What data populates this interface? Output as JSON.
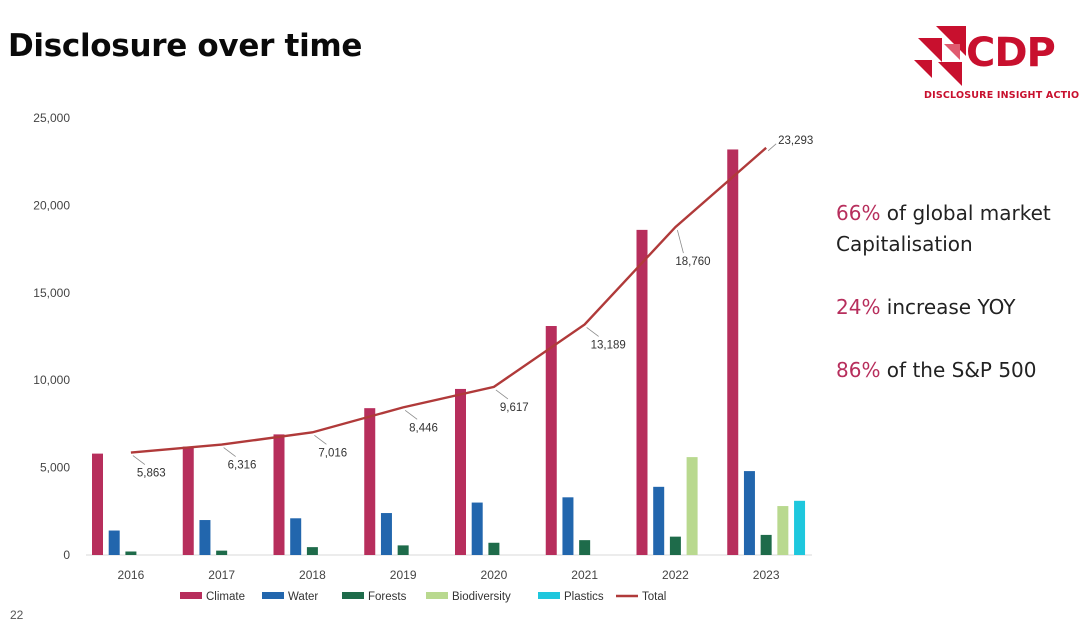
{
  "slide": {
    "title": "Disclosure over time",
    "page_number": "22"
  },
  "logo": {
    "name": "CDP",
    "tagline": "DISCLOSURE INSIGHT ACTION"
  },
  "stats": [
    {
      "pct": "66%",
      "text": " of global market Capitalisation"
    },
    {
      "pct": "24%",
      "text": " increase YOY"
    },
    {
      "pct": "86%",
      "text": " of the S&P 500"
    }
  ],
  "colors": {
    "climate": "#b72e5c",
    "water": "#2266ad",
    "forests": "#1e6b4a",
    "biodiversity": "#b9d98f",
    "plastics": "#1ec7dd",
    "total": "#b03a3a",
    "accent": "#c8102e"
  },
  "chart_data": {
    "type": "bar",
    "categories": [
      "2016",
      "2017",
      "2018",
      "2019",
      "2020",
      "2021",
      "2022",
      "2023"
    ],
    "ylim": [
      0,
      25000
    ],
    "yticks": [
      "0",
      "5,000",
      "10,000",
      "15,000",
      "20,000",
      "25,000"
    ],
    "ytick_values": [
      0,
      5000,
      10000,
      15000,
      20000,
      25000
    ],
    "grid": false,
    "legend_position": "bottom",
    "series": [
      {
        "name": "Climate",
        "key": "climate",
        "values": [
          5800,
          6200,
          6900,
          8400,
          9500,
          13100,
          18600,
          23200
        ]
      },
      {
        "name": "Water",
        "key": "water",
        "values": [
          1400,
          2000,
          2100,
          2400,
          3000,
          3300,
          3900,
          4800
        ]
      },
      {
        "name": "Forests",
        "key": "forests",
        "values": [
          200,
          250,
          450,
          550,
          700,
          850,
          1050,
          1150
        ]
      },
      {
        "name": "Biodiversity",
        "key": "biodiversity",
        "values": [
          null,
          null,
          null,
          null,
          null,
          null,
          5600,
          2800
        ]
      },
      {
        "name": "Plastics",
        "key": "plastics",
        "values": [
          null,
          null,
          null,
          null,
          null,
          null,
          null,
          3100
        ]
      }
    ],
    "line_series": {
      "name": "Total",
      "key": "total",
      "values": [
        5863,
        6316,
        7016,
        8446,
        9617,
        13189,
        18760,
        23293
      ],
      "labels": [
        "5,863",
        "6,316",
        "7,016",
        "8,446",
        "9,617",
        "13,189",
        "18,760",
        "23,293"
      ]
    }
  }
}
